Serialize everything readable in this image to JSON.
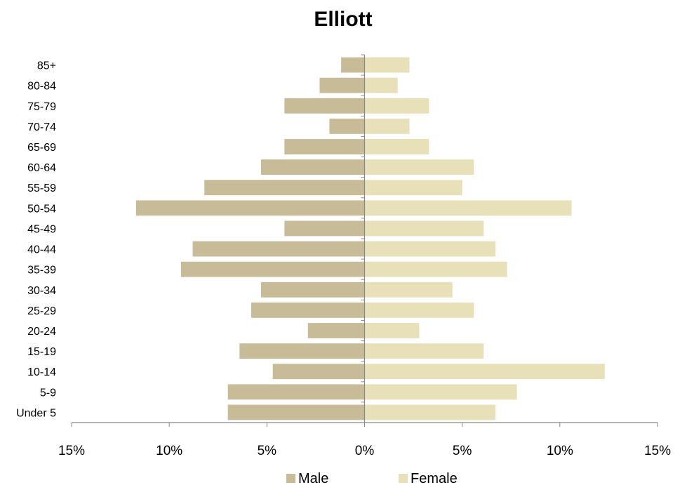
{
  "chart_data": {
    "type": "bar",
    "orientation": "horizontal",
    "title": "Elliott",
    "categories": [
      "Under 5",
      "5-9",
      "10-14",
      "15-19",
      "20-24",
      "25-29",
      "30-34",
      "35-39",
      "40-44",
      "45-49",
      "50-54",
      "55-59",
      "60-64",
      "65-69",
      "70-74",
      "75-79",
      "80-84",
      "85+"
    ],
    "series": [
      {
        "name": "Male",
        "color": "#c8bb97",
        "values": [
          -7.0,
          -7.0,
          -4.7,
          -6.4,
          -2.9,
          -5.8,
          -5.3,
          -9.4,
          -8.8,
          -4.1,
          -11.7,
          -8.2,
          -5.3,
          -4.1,
          -1.8,
          -4.1,
          -2.3,
          -1.2
        ]
      },
      {
        "name": "Female",
        "color": "#e8e0b8",
        "values": [
          6.7,
          7.8,
          12.3,
          6.1,
          2.8,
          5.6,
          4.5,
          7.3,
          6.7,
          6.1,
          10.6,
          5.0,
          5.6,
          3.3,
          2.3,
          3.3,
          1.7,
          2.3
        ]
      }
    ],
    "xlim": [
      -15,
      15
    ],
    "xticks": [
      -15,
      -10,
      -5,
      0,
      5,
      10,
      15
    ],
    "xtick_labels": [
      "15%",
      "10%",
      "5%",
      "0%",
      "5%",
      "10%",
      "15%"
    ],
    "xlabel": "",
    "ylabel": "",
    "grid": false,
    "legend_position": "bottom"
  }
}
